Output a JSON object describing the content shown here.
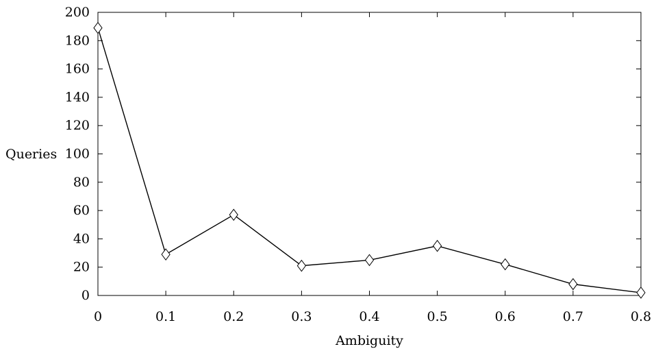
{
  "chart_data": {
    "type": "line",
    "title": "",
    "xlabel": "Ambiguity",
    "ylabel": "Queries",
    "xlim": [
      0,
      0.8
    ],
    "ylim": [
      0,
      200
    ],
    "x_ticks": [
      0,
      0.1,
      0.2,
      0.3,
      0.4,
      0.5,
      0.6,
      0.7,
      0.8
    ],
    "y_ticks": [
      0,
      20,
      40,
      60,
      80,
      100,
      120,
      140,
      160,
      180,
      200
    ],
    "grid": false,
    "marker": "diamond",
    "series": [
      {
        "x": [
          0,
          0.1,
          0.2,
          0.3,
          0.4,
          0.5,
          0.6,
          0.7,
          0.8
        ],
        "y": [
          189,
          29,
          57,
          21,
          25,
          35,
          22,
          8,
          2
        ]
      }
    ]
  }
}
